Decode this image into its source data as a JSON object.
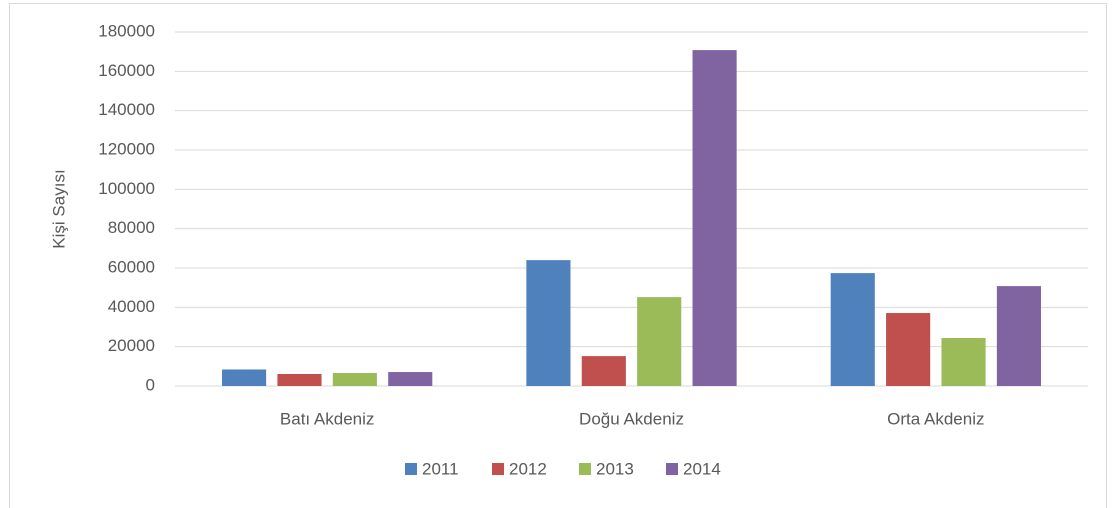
{
  "chart_data": {
    "type": "bar",
    "y_label": "Kişi Sayısı",
    "categories": [
      "Batı Akdeniz",
      "Doğu Akdeniz",
      "Orta Akdeniz"
    ],
    "series": [
      {
        "name": "2011",
        "color": "#4f81bd",
        "values": [
          8400,
          64000,
          57400
        ]
      },
      {
        "name": "2012",
        "color": "#c0504d",
        "values": [
          6100,
          15200,
          37100
        ]
      },
      {
        "name": "2013",
        "color": "#9bbb59",
        "values": [
          6600,
          45200,
          24400
        ]
      },
      {
        "name": "2014",
        "color": "#8064a2",
        "values": [
          7100,
          170800,
          50800
        ]
      }
    ],
    "ylim": [
      0,
      180000
    ],
    "yticks": [
      0,
      20000,
      40000,
      60000,
      80000,
      100000,
      120000,
      140000,
      160000,
      180000
    ],
    "grid": true,
    "legend": "bottom"
  }
}
